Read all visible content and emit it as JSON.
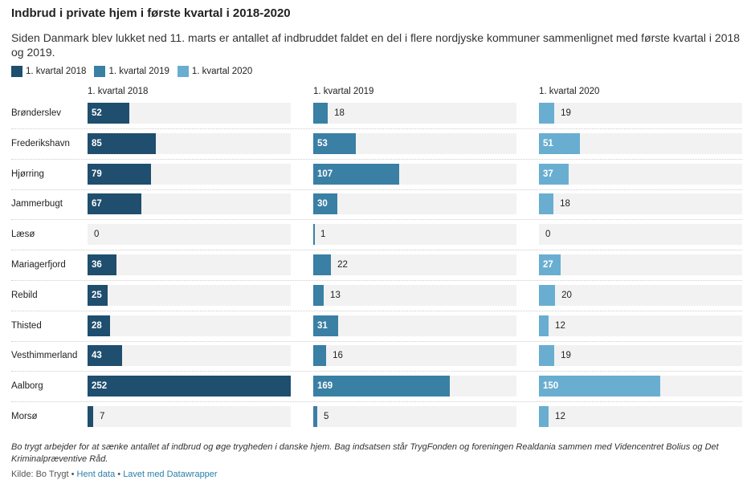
{
  "title": "Indbrud i private hjem i første kvartal i 2018-2020",
  "subtitle": "Siden Danmark blev lukket ned 11. marts er antallet af indbruddet faldet en del i flere nordjyske kommuner sammenlignet med første kvartal i 2018 og 2019.",
  "chart_data": {
    "type": "bar",
    "orientation": "horizontal",
    "layout": "small-multiples",
    "categories": [
      "Brønderslev",
      "Frederikshavn",
      "Hjørring",
      "Jammerbugt",
      "Læsø",
      "Mariagerfjord",
      "Rebild",
      "Thisted",
      "Vesthimmerland",
      "Aalborg",
      "Morsø"
    ],
    "series": [
      {
        "name": "1. kvartal 2018",
        "color": "#1f4e6e",
        "values": [
          52,
          85,
          79,
          67,
          0,
          36,
          25,
          28,
          43,
          252,
          7
        ]
      },
      {
        "name": "1. kvartal 2019",
        "color": "#3a7fa4",
        "values": [
          18,
          53,
          107,
          30,
          1,
          22,
          13,
          31,
          16,
          169,
          5
        ]
      },
      {
        "name": "1. kvartal 2020",
        "color": "#69aed0",
        "values": [
          19,
          51,
          37,
          18,
          0,
          27,
          20,
          12,
          19,
          150,
          12
        ]
      }
    ],
    "xlim": [
      0,
      252
    ],
    "legend": "top-left"
  },
  "footer": {
    "note": "Bo trygt arbejder for at sænke antallet af indbrud og øge trygheden i danske hjem. Bag indsatsen står TrygFonden og foreningen Realdania sammen med Videncentret Bolius og Det Kriminalpræventive Råd.",
    "source": "Kilde: Bo Trygt",
    "sep": " • ",
    "get_data": "Hent data",
    "made_with": "Lavet med Datawrapper"
  }
}
